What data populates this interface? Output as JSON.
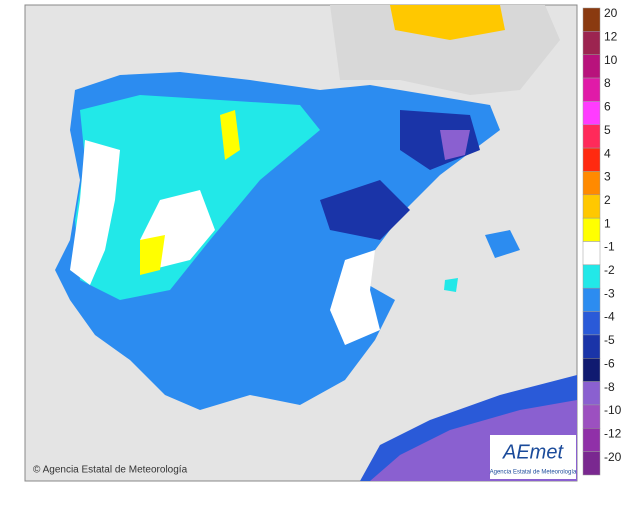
{
  "map": {
    "copyright": "© Agencia Estatal de Meteorología",
    "logo": {
      "name": "AEmet",
      "subtitle": "Agencia Estatal de Meteorología"
    },
    "legend": [
      {
        "label": 20,
        "color": "#8a3a10"
      },
      {
        "label": 12,
        "color": "#9c2450"
      },
      {
        "label": 10,
        "color": "#b8127c"
      },
      {
        "label": 8,
        "color": "#e01aa8"
      },
      {
        "label": 6,
        "color": "#ff3cff"
      },
      {
        "label": 5,
        "color": "#ff2a5a"
      },
      {
        "label": 4,
        "color": "#ff2a10"
      },
      {
        "label": 3,
        "color": "#ff8a00"
      },
      {
        "label": 2,
        "color": "#ffc800"
      },
      {
        "label": 1,
        "color": "#ffff00"
      },
      {
        "label": -1,
        "color": "#ffffff"
      },
      {
        "label": -2,
        "color": "#22e8e8"
      },
      {
        "label": -3,
        "color": "#2c8cf0"
      },
      {
        "label": -4,
        "color": "#2a5ad8"
      },
      {
        "label": -5,
        "color": "#1a34a8"
      },
      {
        "label": -6,
        "color": "#101a70"
      },
      {
        "label": -8,
        "color": "#8a60d0"
      },
      {
        "label": -10,
        "color": "#9c50c0"
      },
      {
        "label": -12,
        "color": "#9030a8"
      },
      {
        "label": -20,
        "color": "#7a2890"
      }
    ]
  }
}
